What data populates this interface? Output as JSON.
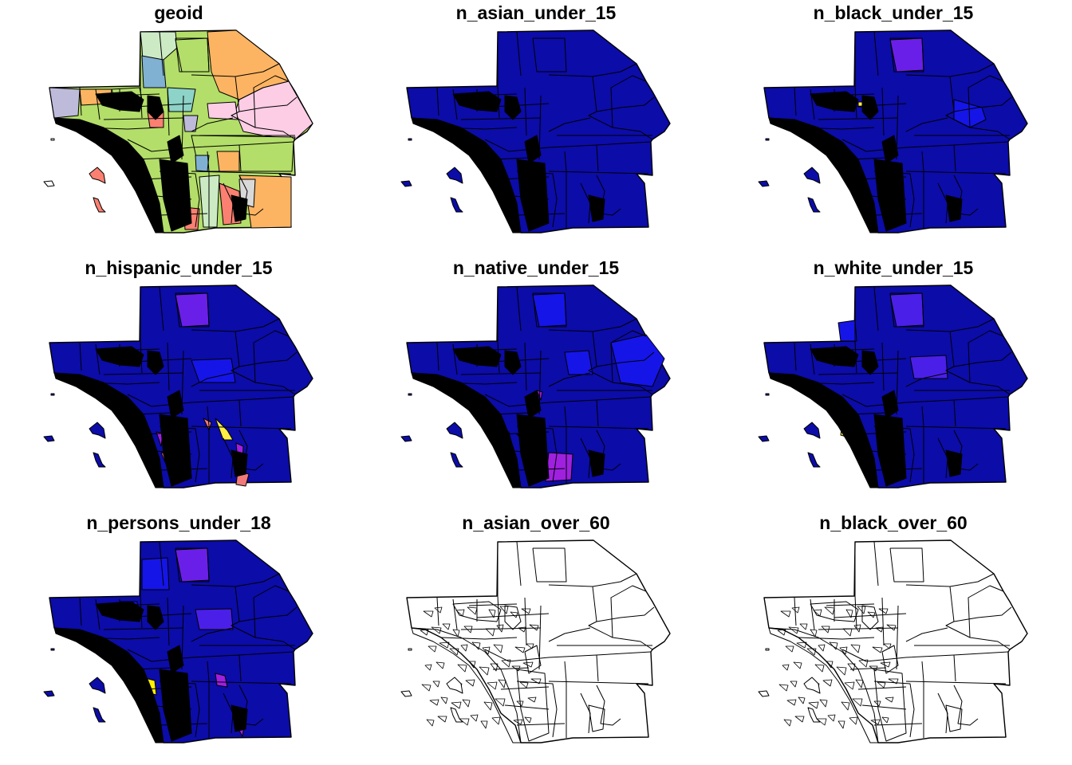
{
  "figure": {
    "panels": [
      {
        "id": "geoid",
        "title": "geoid",
        "style": "categorical"
      },
      {
        "id": "n_asian_under_15",
        "title": "n_asian_under_15",
        "style": "blue"
      },
      {
        "id": "n_black_under_15",
        "title": "n_black_under_15",
        "style": "blue"
      },
      {
        "id": "n_hispanic_under_15",
        "title": "n_hispanic_under_15",
        "style": "blue"
      },
      {
        "id": "n_native_under_15",
        "title": "n_native_under_15",
        "style": "blue"
      },
      {
        "id": "n_white_under_15",
        "title": "n_white_under_15",
        "style": "blue"
      },
      {
        "id": "n_persons_under_18",
        "title": "n_persons_under_18",
        "style": "blue"
      },
      {
        "id": "n_asian_over_60",
        "title": "n_asian_over_60",
        "style": "empty"
      },
      {
        "id": "n_black_over_60",
        "title": "n_black_over_60",
        "style": "empty"
      }
    ]
  },
  "colors": {
    "base_fill": "#0c0ca8",
    "outline": "#000000",
    "empty_fill": "#ffffff",
    "categorical_palette": [
      "#fdb462",
      "#b3de69",
      "#fccde5",
      "#8dd3c7",
      "#80b1d3",
      "#ccebc5",
      "#fb8072",
      "#bebada",
      "#ffffb3",
      "#d9d9d9",
      "#bc80bd",
      "#ffed6f"
    ]
  }
}
